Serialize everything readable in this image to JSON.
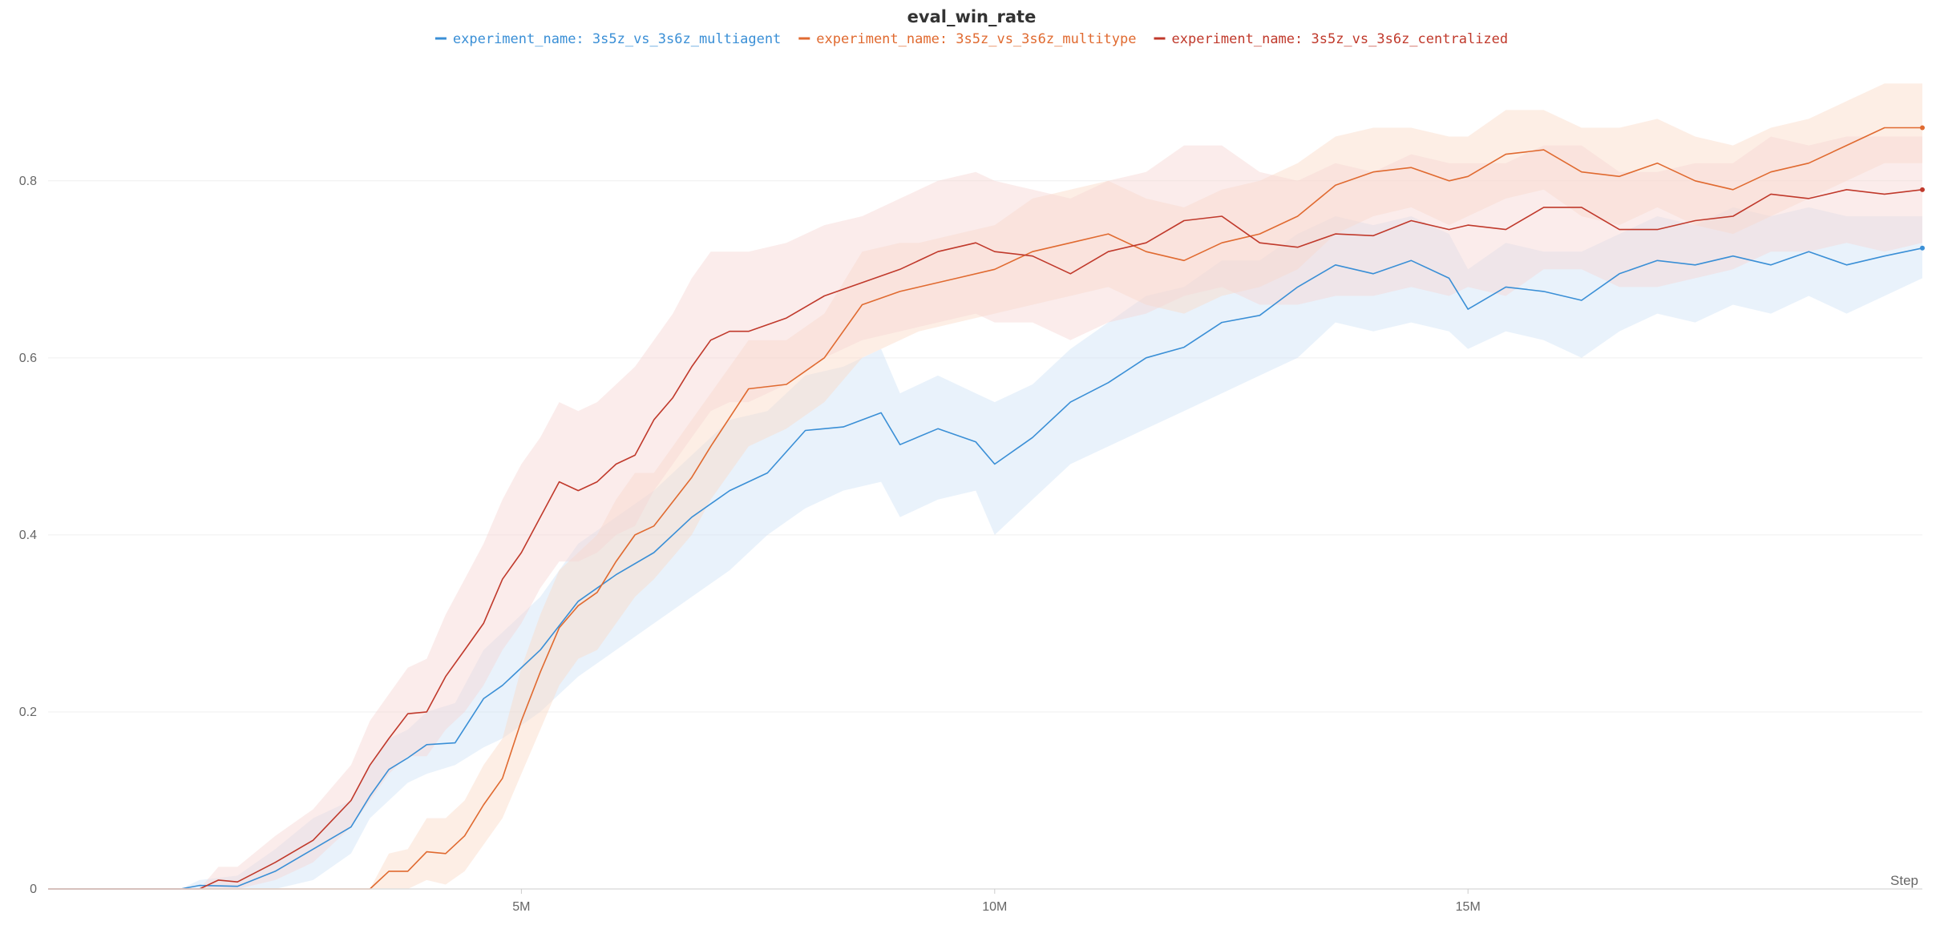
{
  "chart_data": {
    "type": "line",
    "title": "eval_win_rate",
    "xlabel": "Step",
    "ylabel": "",
    "xlim": [
      0,
      19800000
    ],
    "ylim": [
      0,
      0.95
    ],
    "x_ticks": [
      5000000,
      10000000,
      15000000
    ],
    "x_tick_labels": [
      "5M",
      "10M",
      "15M"
    ],
    "y_ticks": [
      0,
      0.2,
      0.4,
      0.6,
      0.8
    ],
    "y_tick_labels": [
      "0",
      "0.2",
      "0.4",
      "0.6",
      "0.8"
    ],
    "grid": true,
    "legend_position": "top",
    "series": [
      {
        "name": "experiment_name: 3s5z_vs_3s6z_multiagent",
        "color": "#3a8fd6",
        "band_color": "#cfe2f6",
        "x": [
          0,
          1400000,
          1600000,
          2000000,
          2400000,
          2800000,
          3200000,
          3400000,
          3600000,
          3800000,
          4000000,
          4300000,
          4600000,
          4800000,
          5200000,
          5600000,
          6000000,
          6400000,
          6800000,
          7200000,
          7600000,
          8000000,
          8400000,
          8800000,
          9000000,
          9400000,
          9800000,
          10000000,
          10400000,
          10800000,
          11200000,
          11600000,
          12000000,
          12400000,
          12800000,
          13200000,
          13600000,
          14000000,
          14400000,
          14800000,
          15000000,
          15400000,
          15800000,
          16200000,
          16600000,
          17000000,
          17400000,
          17800000,
          18200000,
          18600000,
          19000000,
          19400000,
          19800000
        ],
        "y": [
          0,
          0,
          0.004,
          0.003,
          0.02,
          0.045,
          0.07,
          0.105,
          0.135,
          0.148,
          0.163,
          0.165,
          0.215,
          0.23,
          0.27,
          0.325,
          0.355,
          0.38,
          0.42,
          0.45,
          0.47,
          0.518,
          0.522,
          0.538,
          0.502,
          0.52,
          0.505,
          0.48,
          0.51,
          0.55,
          0.572,
          0.6,
          0.612,
          0.64,
          0.648,
          0.68,
          0.705,
          0.695,
          0.71,
          0.69,
          0.655,
          0.68,
          0.675,
          0.665,
          0.695,
          0.71,
          0.705,
          0.715,
          0.705,
          0.72,
          0.705,
          0.715,
          0.724
        ],
        "y_lower": [
          0,
          0,
          0,
          0,
          0,
          0.01,
          0.04,
          0.08,
          0.1,
          0.12,
          0.13,
          0.14,
          0.16,
          0.17,
          0.2,
          0.24,
          0.27,
          0.3,
          0.33,
          0.36,
          0.4,
          0.43,
          0.45,
          0.46,
          0.42,
          0.44,
          0.45,
          0.4,
          0.44,
          0.48,
          0.5,
          0.52,
          0.54,
          0.56,
          0.58,
          0.6,
          0.64,
          0.63,
          0.64,
          0.63,
          0.61,
          0.63,
          0.62,
          0.6,
          0.63,
          0.65,
          0.64,
          0.66,
          0.65,
          0.67,
          0.65,
          0.67,
          0.69
        ],
        "y_upper": [
          0,
          0,
          0.01,
          0.015,
          0.045,
          0.08,
          0.1,
          0.14,
          0.17,
          0.18,
          0.2,
          0.21,
          0.27,
          0.29,
          0.33,
          0.39,
          0.42,
          0.45,
          0.49,
          0.53,
          0.54,
          0.58,
          0.59,
          0.61,
          0.56,
          0.58,
          0.56,
          0.55,
          0.57,
          0.61,
          0.64,
          0.67,
          0.68,
          0.71,
          0.71,
          0.74,
          0.76,
          0.75,
          0.76,
          0.74,
          0.7,
          0.73,
          0.72,
          0.72,
          0.74,
          0.76,
          0.75,
          0.77,
          0.76,
          0.77,
          0.76,
          0.76,
          0.76
        ]
      },
      {
        "name": "experiment_name: 3s5z_vs_3s6z_multitype",
        "color": "#e06a30",
        "band_color": "#fbd9c6",
        "x": [
          0,
          3400000,
          3600000,
          3800000,
          4000000,
          4200000,
          4400000,
          4600000,
          4800000,
          5000000,
          5200000,
          5400000,
          5600000,
          5800000,
          6000000,
          6200000,
          6400000,
          6800000,
          7000000,
          7400000,
          7800000,
          8200000,
          8600000,
          9000000,
          9200000,
          9600000,
          10000000,
          10400000,
          10800000,
          11200000,
          11600000,
          12000000,
          12400000,
          12800000,
          13200000,
          13600000,
          14000000,
          14400000,
          14800000,
          15000000,
          15400000,
          15800000,
          16200000,
          16600000,
          17000000,
          17400000,
          17800000,
          18200000,
          18600000,
          19000000,
          19400000,
          19800000
        ],
        "y": [
          0,
          0,
          0.02,
          0.02,
          0.042,
          0.04,
          0.06,
          0.095,
          0.125,
          0.19,
          0.245,
          0.295,
          0.32,
          0.335,
          0.37,
          0.4,
          0.41,
          0.465,
          0.5,
          0.565,
          0.57,
          0.6,
          0.66,
          0.675,
          0.68,
          0.69,
          0.7,
          0.72,
          0.73,
          0.74,
          0.72,
          0.71,
          0.73,
          0.74,
          0.76,
          0.795,
          0.81,
          0.815,
          0.8,
          0.805,
          0.83,
          0.835,
          0.81,
          0.805,
          0.82,
          0.8,
          0.79,
          0.81,
          0.82,
          0.84,
          0.86,
          0.86
        ],
        "y_lower": [
          0,
          0,
          0,
          0,
          0.01,
          0.005,
          0.02,
          0.05,
          0.08,
          0.13,
          0.18,
          0.23,
          0.26,
          0.27,
          0.3,
          0.33,
          0.35,
          0.4,
          0.44,
          0.5,
          0.52,
          0.55,
          0.6,
          0.62,
          0.63,
          0.64,
          0.65,
          0.66,
          0.67,
          0.68,
          0.66,
          0.65,
          0.67,
          0.68,
          0.7,
          0.74,
          0.76,
          0.77,
          0.75,
          0.76,
          0.78,
          0.79,
          0.76,
          0.75,
          0.77,
          0.75,
          0.74,
          0.76,
          0.78,
          0.8,
          0.82,
          0.82
        ],
        "y_upper": [
          0,
          0,
          0.04,
          0.045,
          0.08,
          0.08,
          0.1,
          0.14,
          0.17,
          0.25,
          0.31,
          0.36,
          0.38,
          0.4,
          0.44,
          0.47,
          0.47,
          0.53,
          0.56,
          0.62,
          0.62,
          0.65,
          0.72,
          0.73,
          0.73,
          0.74,
          0.75,
          0.78,
          0.79,
          0.8,
          0.78,
          0.77,
          0.79,
          0.8,
          0.82,
          0.85,
          0.86,
          0.86,
          0.85,
          0.85,
          0.88,
          0.88,
          0.86,
          0.86,
          0.87,
          0.85,
          0.84,
          0.86,
          0.87,
          0.89,
          0.91,
          0.91
        ]
      },
      {
        "name": "experiment_name: 3s5z_vs_3s6z_centralized",
        "color": "#c0392b",
        "band_color": "#f6d4d2",
        "x": [
          0,
          1600000,
          1800000,
          2000000,
          2400000,
          2800000,
          3200000,
          3400000,
          3600000,
          3800000,
          4000000,
          4200000,
          4400000,
          4600000,
          4800000,
          5000000,
          5200000,
          5400000,
          5600000,
          5800000,
          6000000,
          6200000,
          6400000,
          6600000,
          6800000,
          7000000,
          7200000,
          7400000,
          7800000,
          8200000,
          8600000,
          9000000,
          9400000,
          9800000,
          10000000,
          10400000,
          10800000,
          11200000,
          11600000,
          12000000,
          12400000,
          12800000,
          13200000,
          13600000,
          14000000,
          14400000,
          14800000,
          15000000,
          15400000,
          15800000,
          16200000,
          16600000,
          17000000,
          17400000,
          17800000,
          18200000,
          18600000,
          19000000,
          19400000,
          19800000
        ],
        "y": [
          0,
          0,
          0.01,
          0.008,
          0.03,
          0.055,
          0.1,
          0.14,
          0.17,
          0.198,
          0.2,
          0.24,
          0.27,
          0.3,
          0.35,
          0.38,
          0.42,
          0.46,
          0.45,
          0.46,
          0.48,
          0.49,
          0.53,
          0.555,
          0.59,
          0.62,
          0.63,
          0.63,
          0.645,
          0.67,
          0.685,
          0.7,
          0.72,
          0.73,
          0.72,
          0.715,
          0.695,
          0.72,
          0.73,
          0.755,
          0.76,
          0.73,
          0.725,
          0.74,
          0.738,
          0.755,
          0.745,
          0.75,
          0.745,
          0.77,
          0.77,
          0.745,
          0.745,
          0.755,
          0.76,
          0.785,
          0.78,
          0.79,
          0.785,
          0.79
        ],
        "y_lower": [
          0,
          0,
          0,
          0,
          0.01,
          0.03,
          0.07,
          0.1,
          0.13,
          0.15,
          0.15,
          0.18,
          0.2,
          0.23,
          0.27,
          0.3,
          0.34,
          0.37,
          0.37,
          0.38,
          0.4,
          0.41,
          0.45,
          0.48,
          0.51,
          0.54,
          0.55,
          0.55,
          0.57,
          0.6,
          0.62,
          0.63,
          0.64,
          0.65,
          0.64,
          0.64,
          0.62,
          0.64,
          0.65,
          0.67,
          0.68,
          0.66,
          0.66,
          0.67,
          0.67,
          0.68,
          0.67,
          0.68,
          0.67,
          0.7,
          0.7,
          0.68,
          0.68,
          0.69,
          0.7,
          0.72,
          0.72,
          0.73,
          0.72,
          0.73
        ],
        "y_upper": [
          0,
          0,
          0.025,
          0.025,
          0.06,
          0.09,
          0.14,
          0.19,
          0.22,
          0.25,
          0.26,
          0.31,
          0.35,
          0.39,
          0.44,
          0.48,
          0.51,
          0.55,
          0.54,
          0.55,
          0.57,
          0.59,
          0.62,
          0.65,
          0.69,
          0.72,
          0.72,
          0.72,
          0.73,
          0.75,
          0.76,
          0.78,
          0.8,
          0.81,
          0.8,
          0.79,
          0.78,
          0.8,
          0.81,
          0.84,
          0.84,
          0.81,
          0.8,
          0.82,
          0.81,
          0.83,
          0.82,
          0.82,
          0.82,
          0.84,
          0.84,
          0.81,
          0.81,
          0.82,
          0.82,
          0.85,
          0.84,
          0.85,
          0.85,
          0.85
        ]
      }
    ]
  }
}
